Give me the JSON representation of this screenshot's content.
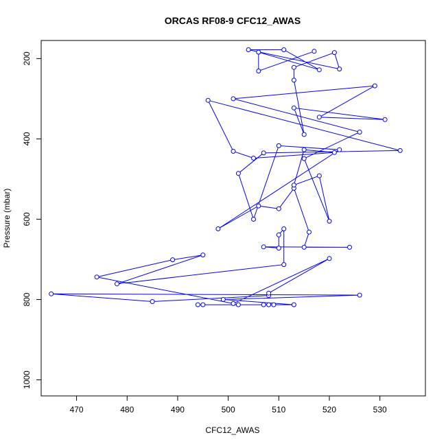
{
  "chart_data": {
    "type": "line",
    "title": "ORCAS RF08-9 CFC12_AWAS",
    "xlabel": "CFC12_AWAS",
    "ylabel": "Pressure (mbar)",
    "xlim": [
      463,
      539
    ],
    "ylim": [
      1040,
      155
    ],
    "y_inverted": true,
    "x_ticks": [
      470,
      480,
      490,
      500,
      510,
      520,
      530
    ],
    "y_ticks": [
      200,
      400,
      600,
      800,
      1000
    ],
    "grid": false,
    "line_color": "#0000ff",
    "marker": "open-circle",
    "series": [
      {
        "points": [
          [
            509,
            813
          ],
          [
            508,
            813
          ],
          [
            507,
            813
          ],
          [
            495,
            813
          ],
          [
            494,
            813
          ],
          [
            502,
            813
          ],
          [
            513,
            813
          ],
          [
            499,
            800
          ],
          [
            526,
            789
          ],
          [
            465,
            786
          ],
          [
            485,
            805
          ],
          [
            508,
            790
          ],
          [
            508,
            784
          ],
          [
            520,
            698
          ],
          [
            501,
            810
          ],
          [
            474,
            744
          ],
          [
            489,
            701
          ],
          [
            495,
            689
          ],
          [
            478,
            761
          ],
          [
            511,
            713
          ],
          [
            511,
            624
          ],
          [
            510,
            639
          ],
          [
            510,
            672
          ],
          [
            507,
            669
          ],
          [
            524,
            670
          ],
          [
            515,
            670
          ],
          [
            516,
            632
          ],
          [
            513,
            523
          ],
          [
            510,
            574
          ],
          [
            506,
            567
          ],
          [
            498,
            624
          ],
          [
            522,
            427
          ],
          [
            510,
            417
          ],
          [
            505,
            600
          ],
          [
            502,
            486
          ],
          [
            507,
            435
          ],
          [
            534,
            429
          ],
          [
            496,
            304
          ],
          [
            501,
            431
          ],
          [
            505,
            448
          ],
          [
            521,
            434
          ],
          [
            515,
            427
          ],
          [
            513,
            515
          ],
          [
            518,
            492
          ],
          [
            520,
            605
          ],
          [
            515,
            449
          ],
          [
            526,
            383
          ],
          [
            501,
            300
          ],
          [
            529,
            268
          ],
          [
            518,
            346
          ],
          [
            531,
            352
          ],
          [
            513,
            323
          ],
          [
            515,
            389
          ],
          [
            513,
            254
          ],
          [
            513,
            222
          ],
          [
            521,
            185
          ],
          [
            522,
            226
          ],
          [
            504,
            178
          ],
          [
            511,
            178
          ],
          [
            518,
            228
          ],
          [
            506,
            184
          ],
          [
            506,
            231
          ],
          [
            517,
            182
          ]
        ]
      }
    ]
  }
}
